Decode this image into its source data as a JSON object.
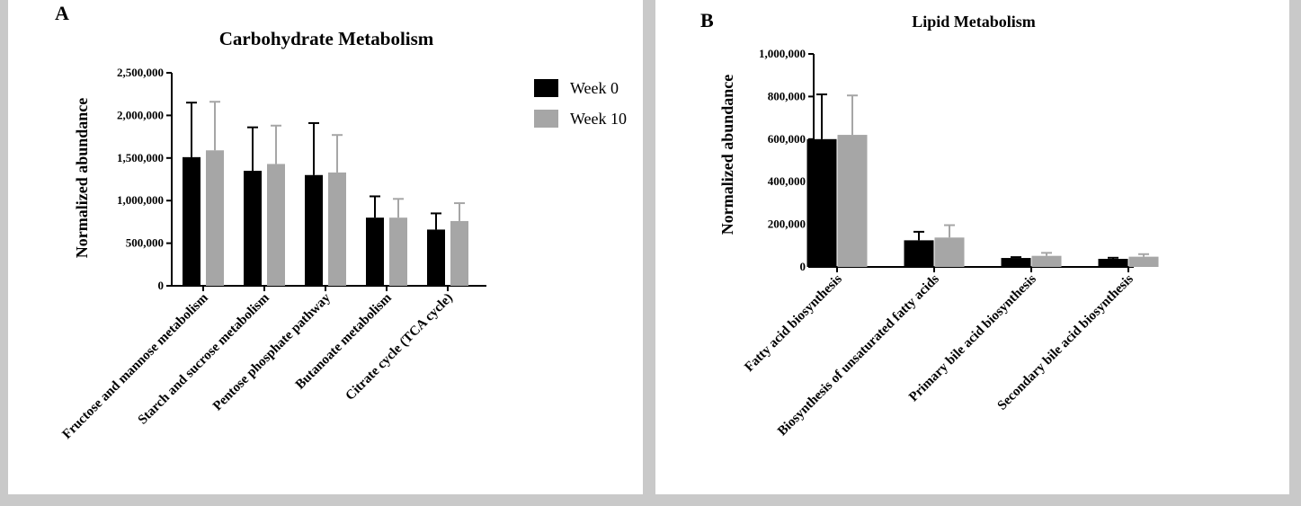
{
  "colors": {
    "week0": "#000000",
    "week10": "#a6a6a6",
    "axis": "#000000"
  },
  "chart_data": [
    {
      "panel": "A",
      "type": "bar",
      "title": "Carbohydrate Metabolism",
      "xlabel": "",
      "ylabel": "Normalized abundance",
      "ylim": [
        0,
        2500000
      ],
      "yticks": [
        0,
        500000,
        1000000,
        1500000,
        2000000,
        2500000
      ],
      "ytick_labels": [
        "0",
        "500,000",
        "1,000,000",
        "1,500,000",
        "2,000,000",
        "2,500,000"
      ],
      "categories": [
        "Fructose and mannose metabolism",
        "Starch and sucrose metabolism",
        "Pentose phosphate pathway",
        "Butanoate metabolism",
        "Citrate cycle (TCA cycle)"
      ],
      "series": [
        {
          "name": "Week 0",
          "values": [
            1510000,
            1350000,
            1300000,
            800000,
            660000
          ],
          "errors": [
            640000,
            510000,
            610000,
            250000,
            190000
          ]
        },
        {
          "name": "Week 10",
          "values": [
            1590000,
            1430000,
            1330000,
            800000,
            760000
          ],
          "errors": [
            570000,
            450000,
            440000,
            220000,
            210000
          ]
        }
      ],
      "legend": "top-right"
    },
    {
      "panel": "B",
      "type": "bar",
      "title": "Lipid Metabolism",
      "xlabel": "",
      "ylabel": "Normalized abundance",
      "ylim": [
        0,
        1000000
      ],
      "yticks": [
        0,
        200000,
        400000,
        600000,
        800000,
        1000000
      ],
      "ytick_labels": [
        "0",
        "200,000",
        "400,000",
        "600,000",
        "800,000",
        "1,000,000"
      ],
      "categories": [
        "Fatty acid biosynthesis",
        "Biosynthesis of unsaturated fatty acids",
        "Primary bile acid biosynthesis",
        "Secondary bile acid biosynthesis"
      ],
      "series": [
        {
          "name": "Week 0",
          "values": [
            600000,
            125000,
            42000,
            38000
          ],
          "errors": [
            210000,
            40000,
            4000,
            5000
          ]
        },
        {
          "name": "Week 10",
          "values": [
            620000,
            138000,
            52000,
            48000
          ],
          "errors": [
            185000,
            58000,
            14000,
            12000
          ]
        }
      ]
    }
  ]
}
